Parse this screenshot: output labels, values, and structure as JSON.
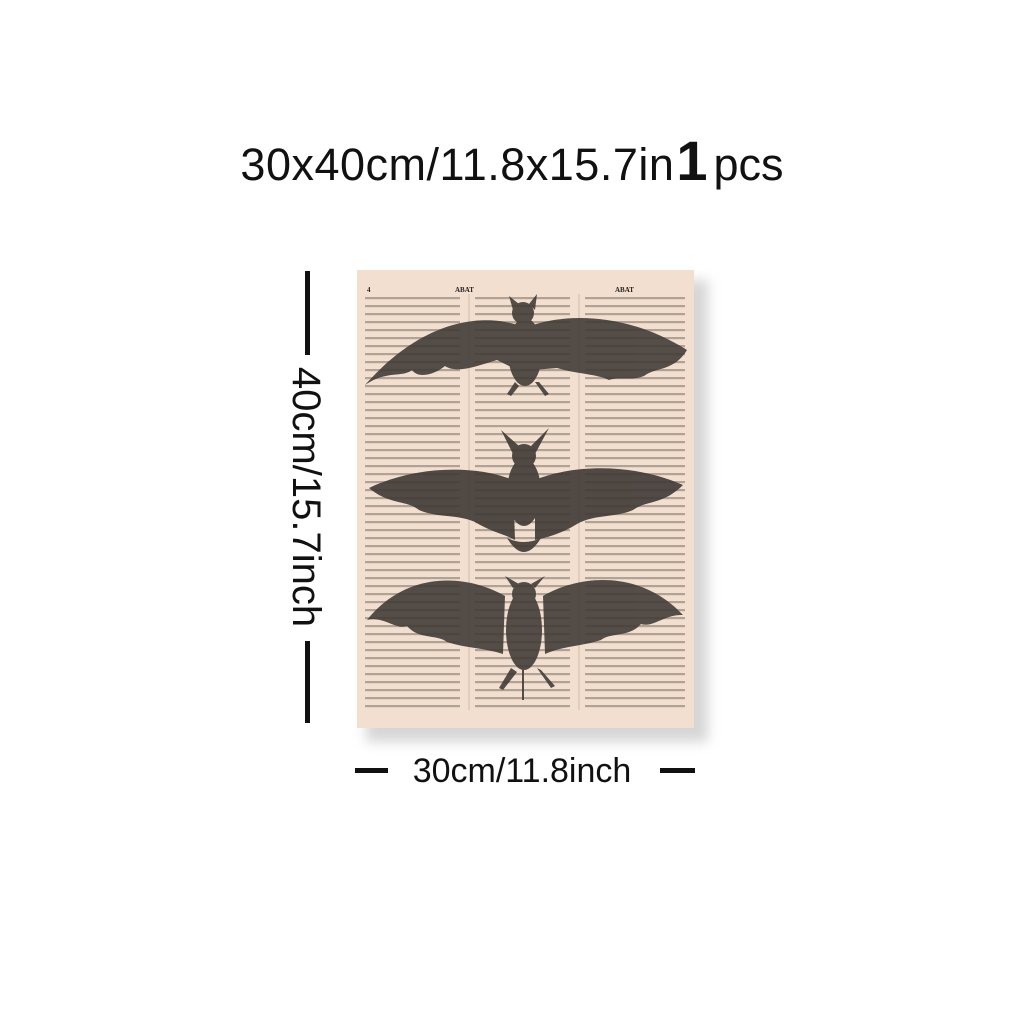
{
  "product": {
    "size_text": "30x40cm/11.8x15.7in",
    "quantity": "1",
    "quantity_unit": "pcs"
  },
  "dimensions": {
    "height_label": "40cm/15.7inch",
    "width_label": "30cm/11.8inch"
  },
  "canvas": {
    "artwork": "vintage-bat-illustration-on-dictionary-page-icon",
    "page_header": {
      "page_number": "4",
      "left_head": "ABAT",
      "right_head": "ABAT"
    },
    "colors": {
      "paper": "#f3dfcf",
      "bat": "#3f3935"
    }
  }
}
